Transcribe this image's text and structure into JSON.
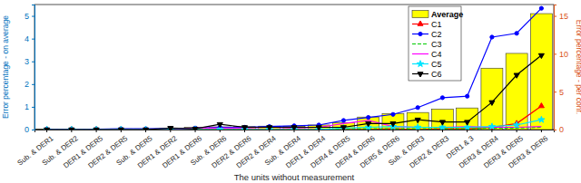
{
  "chart_data": {
    "type": "bar",
    "x_label": "The units without measurement",
    "y_label": "Error percentage - on average",
    "y2_label": "Error percentage - per conf.",
    "categories": [
      "Sub. & DER1",
      "Sub. & DER2",
      "DER1 & DER5",
      "DER2 & DER5",
      "Sub. & DER5",
      "DER1 & DER2",
      "DER1 & DER6",
      "Sub. & DER6",
      "DER2 & DER6",
      "DER2 & DER4",
      "Sub. & DER4",
      "DER1 & DER4",
      "DER4 & DER5",
      "DER4 & DER6",
      "DER5 & DER6",
      "Sub. & DER3",
      "DER2 & DER3",
      "DER1 & 3",
      "DER3 & DER4",
      "DER3 & DER5",
      "DER3 & DER6"
    ],
    "ylim": [
      0,
      5.5
    ],
    "yticks": [
      0,
      1,
      2,
      3,
      4,
      5
    ],
    "y2lim": [
      0,
      16.5
    ],
    "y2ticks": [
      0,
      5,
      10,
      15
    ],
    "legend": "top-right",
    "series": [
      {
        "name": "Average",
        "type": "bar",
        "color": "#ffff00",
        "values": [
          0.02,
          0.02,
          0.02,
          0.03,
          0.03,
          0.04,
          0.1,
          0.12,
          0.13,
          0.15,
          0.15,
          0.2,
          0.3,
          0.55,
          0.7,
          0.75,
          0.9,
          0.95,
          2.7,
          3.35,
          5.1
        ]
      },
      {
        "name": "C1",
        "type": "line",
        "axis": "y2",
        "color": "#ff0000",
        "marker": "triangle",
        "line_style": "solid",
        "values": [
          0,
          0,
          0,
          0,
          0,
          0,
          0,
          0,
          0,
          0,
          0,
          0,
          0,
          0,
          0.1,
          0,
          0.1,
          0.1,
          0.3,
          0.8,
          3.1
        ]
      },
      {
        "name": "C2",
        "type": "line",
        "axis": "y2",
        "color": "#0000ff",
        "marker": "circle",
        "line_style": "solid",
        "values": [
          0.05,
          0.05,
          0.05,
          0.1,
          0.1,
          0.15,
          0.2,
          0.3,
          0.3,
          0.4,
          0.5,
          0.6,
          1.2,
          1.6,
          2,
          2.9,
          4.2,
          4.4,
          12.2,
          12.7,
          16
        ]
      },
      {
        "name": "C3",
        "type": "line",
        "axis": "y2",
        "color": "#00cc00",
        "marker": "none",
        "line_style": "dashed",
        "values": [
          0,
          0,
          0,
          0,
          0,
          0,
          0,
          0,
          0,
          0,
          0,
          0,
          0.1,
          0.1,
          0.1,
          0.1,
          0.1,
          0.1,
          0.2,
          0.2,
          0.3
        ]
      },
      {
        "name": "C4",
        "type": "line",
        "axis": "y2",
        "color": "#ff00ff",
        "marker": "none",
        "line_style": "solid",
        "values": [
          0,
          0,
          0,
          0,
          0,
          0,
          0.2,
          0.2,
          0.2,
          0.3,
          0.2,
          0.3,
          0.8,
          1.2,
          0.4,
          0.3,
          0.3,
          0.4,
          0.3,
          0.3,
          0.4
        ]
      },
      {
        "name": "C5",
        "type": "line",
        "axis": "y2",
        "color": "#00e5ff",
        "marker": "star",
        "line_style": "solid",
        "values": [
          0,
          0,
          0,
          0,
          0,
          0,
          0,
          0,
          0,
          0,
          0,
          0,
          0.2,
          0.3,
          0.4,
          0.3,
          0.3,
          0.3,
          0.4,
          0.6,
          1.3
        ]
      },
      {
        "name": "C6",
        "type": "line",
        "axis": "y2",
        "color": "#000000",
        "marker": "triangle-down",
        "line_style": "solid",
        "values": [
          0,
          0,
          0,
          0,
          0,
          0.2,
          0.1,
          0.7,
          0.3,
          0.3,
          0.3,
          0.3,
          0.3,
          0.8,
          0.8,
          1.3,
          1,
          1,
          3.6,
          7.2,
          9.8
        ]
      }
    ]
  }
}
